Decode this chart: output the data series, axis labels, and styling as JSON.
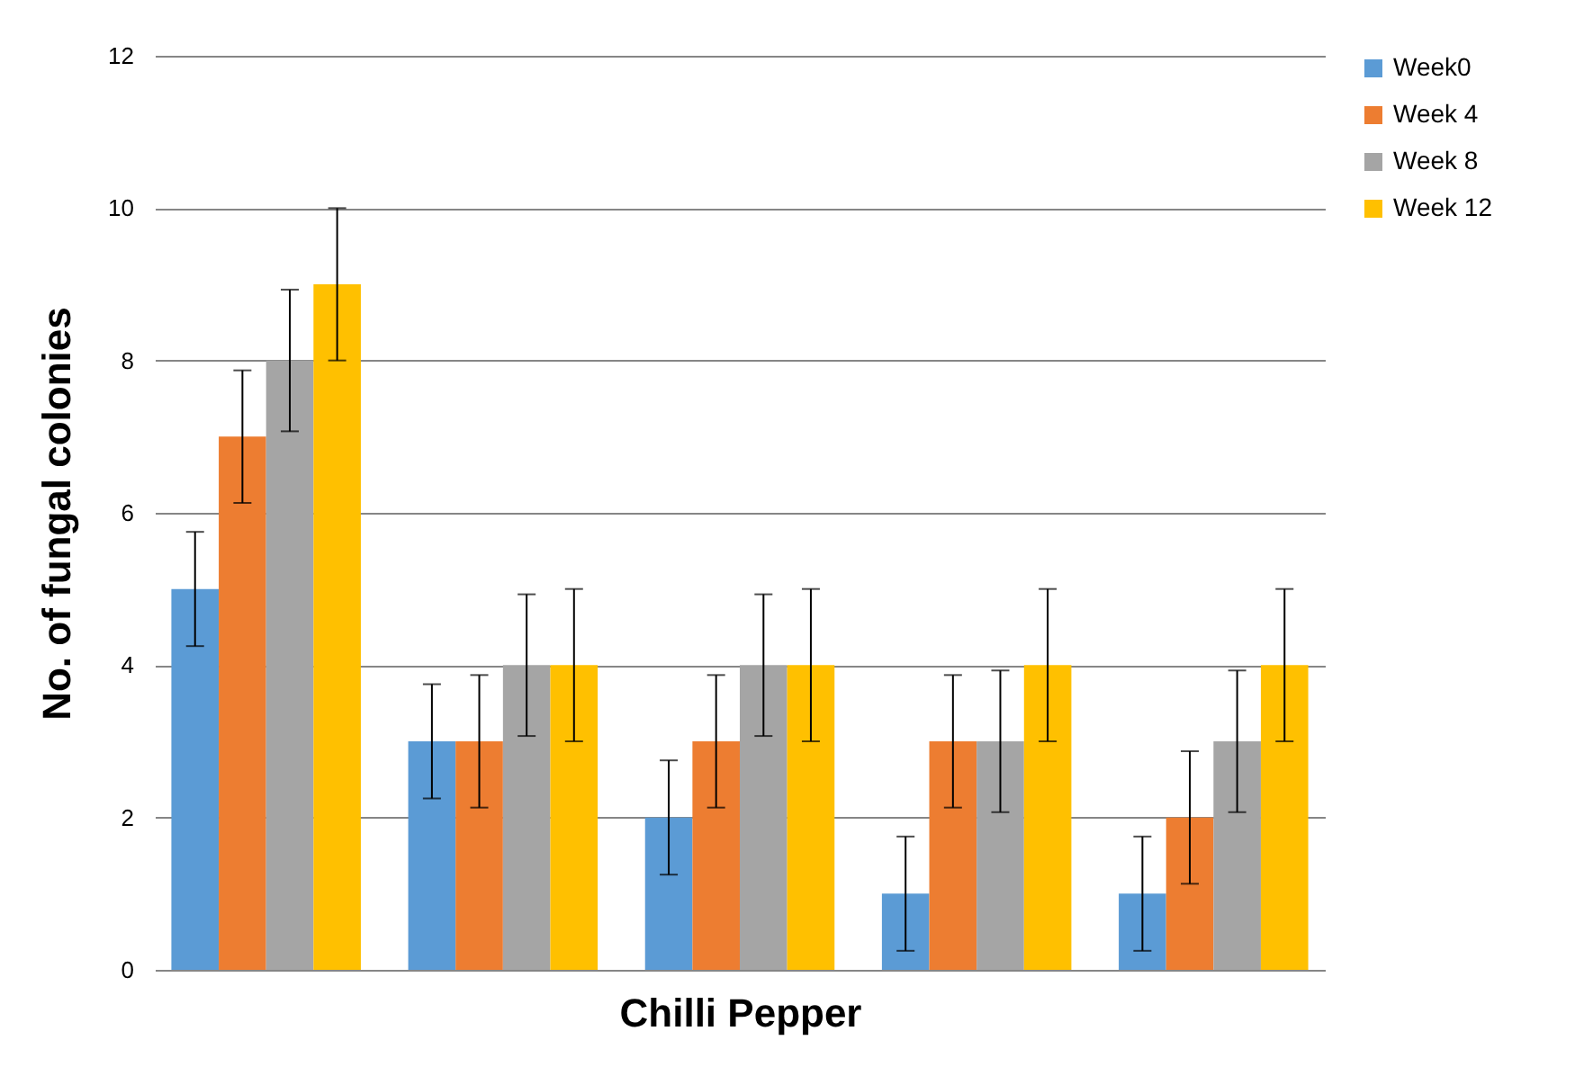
{
  "chart_data": {
    "type": "bar",
    "xlabel": "Chilli Pepper",
    "ylabel": "No. of fungal colonies",
    "categories": [
      null,
      null,
      null,
      null,
      null
    ],
    "ylim": [
      0,
      12
    ],
    "yticks": [
      0,
      2,
      4,
      6,
      8,
      10,
      12
    ],
    "grid": "y",
    "legend": "right",
    "tick_labels": "y",
    "series": [
      {
        "name": "Week0",
        "color": "#5b9bd5",
        "values": [
          5,
          3,
          2,
          1,
          1
        ],
        "errors": [
          0.75,
          0.75,
          0.75,
          0.75,
          0.75
        ]
      },
      {
        "name": "Week 4",
        "color": "#ed7d31",
        "values": [
          7,
          3,
          3,
          3,
          2
        ],
        "errors": [
          0.87,
          0.87,
          0.87,
          0.87,
          0.87
        ]
      },
      {
        "name": "Week 8",
        "color": "#a5a5a5",
        "values": [
          8,
          4,
          4,
          3,
          3
        ],
        "errors": [
          0.93,
          0.93,
          0.93,
          0.93,
          0.93
        ]
      },
      {
        "name": "Week 12",
        "color": "#ffc000",
        "values": [
          9,
          4,
          4,
          4,
          4
        ],
        "errors": [
          1,
          1,
          1,
          1,
          1
        ]
      }
    ]
  }
}
